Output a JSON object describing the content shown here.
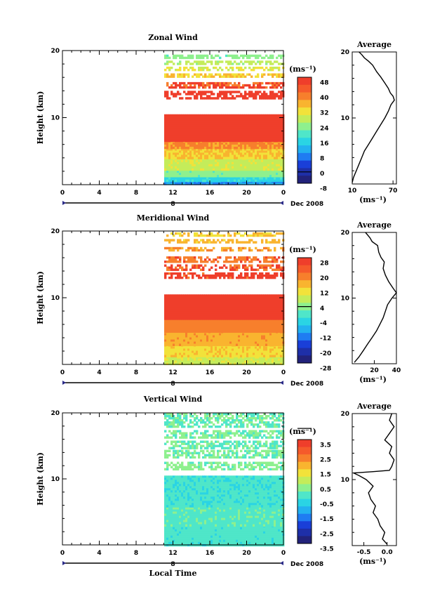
{
  "chart_data": [
    {
      "type": "heatmap",
      "title": "Zonal Wind",
      "ylabel": "Height (km)",
      "ylim": [
        0,
        20
      ],
      "yticks": [
        "10",
        "20"
      ],
      "xticks": [
        "0",
        "4",
        "8",
        "12",
        "16",
        "20",
        "0"
      ],
      "date_marker": "8",
      "date_label": "Dec 2008",
      "colorbar": {
        "unit": "(ms⁻¹)",
        "ticks": [
          "48",
          "40",
          "32",
          "24",
          "16",
          "8",
          "0",
          "-8"
        ],
        "range": [
          -8,
          48
        ]
      },
      "heatmap_bands": [
        {
          "h0": 0.0,
          "h1": 0.6,
          "value": 6
        },
        {
          "h0": 0.6,
          "h1": 1.4,
          "value": 14
        },
        {
          "h0": 1.4,
          "h1": 2.4,
          "value": 22
        },
        {
          "h0": 2.4,
          "h1": 4.0,
          "value": 28
        },
        {
          "h0": 4.0,
          "h1": 5.4,
          "value": 34
        },
        {
          "h0": 5.4,
          "h1": 6.6,
          "value": 40
        },
        {
          "h0": 6.6,
          "h1": 10.5,
          "value": 48
        },
        {
          "h0": 13.0,
          "h1": 14.0,
          "value": 46
        },
        {
          "h0": 14.5,
          "h1": 15.3,
          "value": 44
        },
        {
          "h0": 16.0,
          "h1": 16.6,
          "value": 34
        },
        {
          "h0": 17.0,
          "h1": 17.6,
          "value": 30
        },
        {
          "h0": 18.0,
          "h1": 18.5,
          "value": 26
        },
        {
          "h0": 18.8,
          "h1": 19.4,
          "value": 22
        }
      ],
      "average": {
        "title": "Average",
        "xlabel": "(ms⁻¹)",
        "xlim": [
          10,
          75
        ],
        "xticks": [
          {
            "v": 10,
            "label": "10"
          },
          {
            "v": 70,
            "label": "70"
          }
        ],
        "yticks": [
          "10",
          "20"
        ],
        "profile": [
          [
            10,
            0.2
          ],
          [
            12,
            1
          ],
          [
            16,
            2
          ],
          [
            20,
            3
          ],
          [
            24,
            4
          ],
          [
            28,
            5
          ],
          [
            34,
            6
          ],
          [
            40,
            7
          ],
          [
            46,
            8
          ],
          [
            52,
            9
          ],
          [
            58,
            10
          ],
          [
            63,
            11
          ],
          [
            67,
            12
          ],
          [
            72,
            12.7
          ],
          [
            70,
            13.3
          ],
          [
            66,
            13.8
          ],
          [
            63,
            14.5
          ],
          [
            58,
            15.3
          ],
          [
            52,
            16.2
          ],
          [
            46,
            17
          ],
          [
            40,
            18
          ],
          [
            34,
            18.6
          ],
          [
            28,
            19.1
          ],
          [
            24,
            19.6
          ],
          [
            20,
            20
          ]
        ]
      }
    },
    {
      "type": "heatmap",
      "title": "Meridional Wind",
      "ylabel": "Height (km)",
      "ylim": [
        0,
        20
      ],
      "yticks": [
        "10",
        "20"
      ],
      "xticks": [
        "0",
        "4",
        "8",
        "12",
        "16",
        "20",
        "0"
      ],
      "date_marker": "8",
      "date_label": "Dec 2008",
      "colorbar": {
        "unit": "(ms⁻¹)",
        "ticks": [
          "28",
          "20",
          "12",
          "4",
          "-4",
          "-12",
          "-20",
          "-28"
        ],
        "range": [
          -28,
          28
        ]
      },
      "heatmap_bands": [
        {
          "h0": 0.0,
          "h1": 1.2,
          "value": 8
        },
        {
          "h0": 1.2,
          "h1": 3.0,
          "value": 13
        },
        {
          "h0": 3.0,
          "h1": 5.0,
          "value": 17
        },
        {
          "h0": 5.0,
          "h1": 7.0,
          "value": 21
        },
        {
          "h0": 7.0,
          "h1": 10.5,
          "value": 26
        },
        {
          "h0": 13.0,
          "h1": 13.8,
          "value": 25
        },
        {
          "h0": 14.2,
          "h1": 15.0,
          "value": 24
        },
        {
          "h0": 15.5,
          "h1": 16.2,
          "value": 22
        },
        {
          "h0": 17.0,
          "h1": 17.6,
          "value": 19
        },
        {
          "h0": 18.2,
          "h1": 18.8,
          "value": 16
        },
        {
          "h0": 19.2,
          "h1": 19.8,
          "value": 14
        }
      ],
      "average": {
        "title": "Average",
        "xlabel": "(ms⁻¹)",
        "xlim": [
          0,
          40
        ],
        "xticks": [
          {
            "v": 20,
            "label": "20"
          },
          {
            "v": 40,
            "label": "40"
          }
        ],
        "yticks": [
          "10",
          "20"
        ],
        "profile": [
          [
            2,
            0.2
          ],
          [
            6,
            1
          ],
          [
            10,
            2
          ],
          [
            14,
            3
          ],
          [
            18,
            4
          ],
          [
            22,
            5
          ],
          [
            25,
            6
          ],
          [
            28,
            7
          ],
          [
            30,
            8
          ],
          [
            32,
            9
          ],
          [
            36,
            10
          ],
          [
            40,
            10.8
          ],
          [
            37,
            11.5
          ],
          [
            33,
            12.5
          ],
          [
            30,
            13.5
          ],
          [
            28,
            14.5
          ],
          [
            29,
            15.5
          ],
          [
            26,
            16.2
          ],
          [
            24,
            17
          ],
          [
            23,
            18
          ],
          [
            18,
            18.6
          ],
          [
            16,
            19.2
          ],
          [
            12,
            20
          ]
        ]
      }
    },
    {
      "type": "heatmap",
      "title": "Vertical Wind",
      "ylabel": "Height (km)",
      "ylim": [
        0,
        20
      ],
      "yticks": [
        "10",
        "20"
      ],
      "xticks": [
        "0",
        "4",
        "8",
        "12",
        "16",
        "20",
        "0"
      ],
      "date_marker": "8",
      "date_label": "Dec 2008",
      "xlabel": "Local Time",
      "colorbar": {
        "unit": "(ms⁻¹)",
        "ticks": [
          "3.5",
          "2.5",
          "1.5",
          "0.5",
          "-0.5",
          "-1.5",
          "-2.5",
          "-3.5"
        ],
        "range": [
          -4,
          4
        ]
      },
      "heatmap_bands": [
        {
          "h0": 0.0,
          "h1": 3.0,
          "value": -0.4
        },
        {
          "h0": 3.0,
          "h1": 6.0,
          "value": -0.2
        },
        {
          "h0": 6.0,
          "h1": 10.5,
          "value": -0.5
        },
        {
          "h0": 11.6,
          "h1": 12.6,
          "value": 0.2
        },
        {
          "h0": 13.2,
          "h1": 14.4,
          "value": 0.1
        },
        {
          "h0": 14.8,
          "h1": 15.8,
          "value": 0.0
        },
        {
          "h0": 16.4,
          "h1": 17.4,
          "value": 0.1
        },
        {
          "h0": 18.0,
          "h1": 20.0,
          "value": 0.0
        }
      ],
      "average": {
        "title": "Average",
        "xlabel": "(ms⁻¹)",
        "xlim": [
          -0.75,
          0.2
        ],
        "xticks": [
          {
            "v": -0.5,
            "label": "-0.5"
          },
          {
            "v": 0.0,
            "label": "0.0"
          }
        ],
        "yticks": [
          "10",
          "20"
        ],
        "profile": [
          [
            0.0,
            0.2
          ],
          [
            -0.1,
            1
          ],
          [
            -0.05,
            2
          ],
          [
            -0.15,
            3
          ],
          [
            -0.2,
            4
          ],
          [
            -0.3,
            5
          ],
          [
            -0.25,
            6
          ],
          [
            -0.35,
            7
          ],
          [
            -0.4,
            8
          ],
          [
            -0.3,
            9
          ],
          [
            -0.45,
            10
          ],
          [
            -0.6,
            10.6
          ],
          [
            -0.72,
            11
          ],
          [
            -0.3,
            11.2
          ],
          [
            0.05,
            11.4
          ],
          [
            0.1,
            12
          ],
          [
            0.15,
            13
          ],
          [
            0.05,
            14
          ],
          [
            0.1,
            15
          ],
          [
            -0.05,
            16
          ],
          [
            0.05,
            17
          ],
          [
            0.15,
            18
          ],
          [
            0.05,
            19
          ],
          [
            0.1,
            20
          ]
        ]
      }
    }
  ]
}
